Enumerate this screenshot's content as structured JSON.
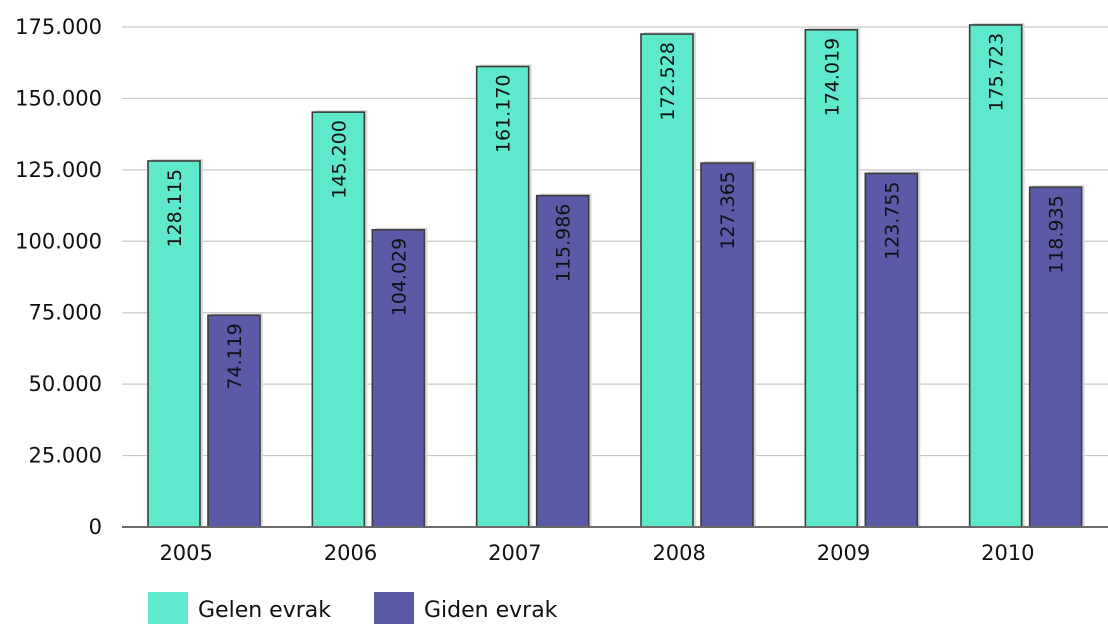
{
  "chart_data": {
    "type": "bar",
    "categories": [
      "2005",
      "2006",
      "2007",
      "2008",
      "2009",
      "2010"
    ],
    "series": [
      {
        "name": "Gelen evrak",
        "values": [
          128115,
          145200,
          161170,
          172528,
          174019,
          175723
        ],
        "labels": [
          "128.115",
          "145.200",
          "161.170",
          "172.528",
          "174.019",
          "175.723"
        ],
        "color": "#5ee8cc"
      },
      {
        "name": "Giden evrak",
        "values": [
          74119,
          104029,
          115986,
          127365,
          123755,
          118935
        ],
        "labels": [
          "74.119",
          "104.029",
          "115.986",
          "127.365",
          "123.755",
          "118.935"
        ],
        "color": "#5a5aa6"
      }
    ],
    "y_ticks": [
      0,
      25000,
      50000,
      75000,
      100000,
      125000,
      150000,
      175000
    ],
    "y_tick_labels": [
      "0",
      "25.000",
      "50.000",
      "75.000",
      "100.000",
      "125.000",
      "150.000",
      "175.000"
    ],
    "ylim": [
      0,
      175000
    ],
    "title": "",
    "xlabel": "",
    "ylabel": "",
    "grid": true,
    "legend_position": "bottom-left"
  }
}
